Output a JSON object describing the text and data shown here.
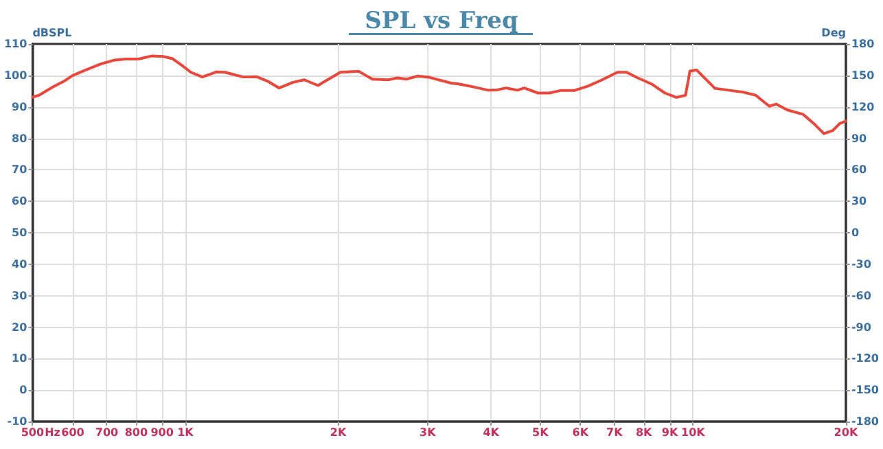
{
  "chart_data": {
    "type": "line",
    "title": "SPL vs Freq",
    "xlabel": "Hz",
    "ylabel": "dBSPL",
    "y2label": "Deg",
    "log": "x",
    "grid": true,
    "marker": "none",
    "line_style": "solid",
    "xlim": [
      500,
      20000
    ],
    "xticks": [
      500,
      {
        "value": 600,
        "label": "600"
      },
      700,
      800,
      900,
      {
        "value": 1000,
        "label": "1K"
      },
      {
        "value": 2000,
        "label": "2K"
      },
      {
        "value": 3000,
        "label": "3K"
      },
      {
        "value": 4000,
        "label": "4K"
      },
      {
        "value": 5000,
        "label": "5K"
      },
      {
        "value": 6000,
        "label": "6K"
      },
      {
        "value": 7000,
        "label": "7K"
      },
      {
        "value": 8000,
        "label": "8K"
      },
      {
        "value": 9000,
        "label": "9K"
      },
      {
        "value": 10000,
        "label": "10K"
      },
      {
        "value": 20000,
        "label": "20K"
      }
    ],
    "ylim": [
      -10,
      110
    ],
    "yticks": [
      -10,
      0,
      10,
      20,
      30,
      40,
      50,
      60,
      70,
      80,
      90,
      100,
      110
    ],
    "y2lim": [
      -180,
      180
    ],
    "y2ticks": [
      -180,
      -150,
      -120,
      -90,
      -60,
      -30,
      0,
      30,
      60,
      90,
      120,
      150,
      180
    ],
    "series": [
      {
        "color": "#e8473c",
        "x": [
          500,
          515,
          548,
          576,
          600,
          638,
          680,
          722,
          761,
          809,
          860,
          906,
          944,
          984,
          1025,
          1080,
          1150,
          1196,
          1300,
          1380,
          1455,
          1530,
          1630,
          1715,
          1825,
          1900,
          2020,
          2195,
          2335,
          2510,
          2615,
          2725,
          2870,
          3020,
          3347,
          3452,
          3633,
          3947,
          4112,
          4285,
          4512,
          4650,
          4950,
          5210,
          5485,
          5835,
          6210,
          6600,
          7095,
          7395,
          7785,
          8280,
          8800,
          9275,
          9665,
          9860,
          10165,
          10490,
          11040,
          11745,
          12615,
          13290,
          14130,
          14575,
          15345,
          16485,
          17370,
          18100,
          18845,
          19450,
          20000
        ],
        "values": [
          93.1,
          93.7,
          96.3,
          98.1,
          100,
          101.8,
          103.6,
          104.8,
          105.2,
          105.2,
          106.2,
          106,
          105.3,
          103.2,
          101,
          99.5,
          101.1,
          101,
          99.5,
          99.6,
          98.1,
          96,
          97.8,
          98.6,
          96.8,
          98.5,
          101,
          101.3,
          98.8,
          98.6,
          99.2,
          98.8,
          99.8,
          99.4,
          97.5,
          97.3,
          96.6,
          95.3,
          95.4,
          96,
          95.3,
          96,
          94.4,
          94.4,
          95.2,
          95.2,
          96.6,
          98.5,
          101,
          101,
          99.2,
          97.3,
          94.4,
          93,
          93.7,
          101.4,
          101.7,
          99.5,
          95.9,
          95.3,
          94.6,
          93.7,
          90.2,
          90.9,
          89,
          87.6,
          84.4,
          81.5,
          82.5,
          84.7,
          85.5
        ]
      }
    ]
  }
}
